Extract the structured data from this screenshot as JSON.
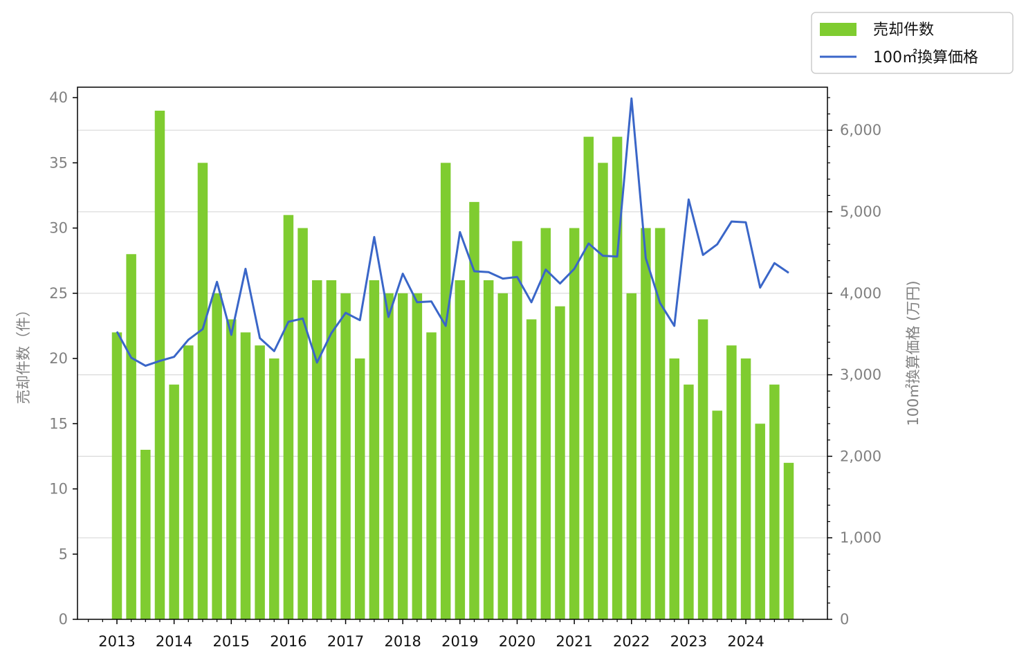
{
  "chart_data": {
    "type": "bar",
    "x": [
      "2013-01",
      "2013-04",
      "2013-07",
      "2013-10",
      "2014-01",
      "2014-04",
      "2014-07",
      "2014-10",
      "2015-01",
      "2015-04",
      "2015-07",
      "2015-10",
      "2016-01",
      "2016-04",
      "2016-07",
      "2016-10",
      "2017-01",
      "2017-04",
      "2017-07",
      "2017-10",
      "2018-01",
      "2018-04",
      "2018-07",
      "2018-10",
      "2019-01",
      "2019-04",
      "2019-07",
      "2019-10",
      "2020-01",
      "2020-04",
      "2020-07",
      "2020-10",
      "2021-01",
      "2021-04",
      "2021-07",
      "2021-10",
      "2022-01",
      "2022-04",
      "2022-07",
      "2022-10",
      "2023-01",
      "2023-04",
      "2023-07",
      "2023-10",
      "2024-01",
      "2024-04",
      "2024-07",
      "2024-10"
    ],
    "xticks": [
      "2013",
      "2014",
      "2015",
      "2016",
      "2017",
      "2018",
      "2019",
      "2020",
      "2021",
      "2022",
      "2023",
      "2024"
    ],
    "series": [
      {
        "name": "売却件数",
        "type": "bar",
        "axis": "left",
        "color": "#7fcc30",
        "values": [
          22,
          28,
          13,
          39,
          18,
          21,
          35,
          25,
          23,
          22,
          21,
          20,
          31,
          30,
          26,
          26,
          25,
          20,
          26,
          25,
          25,
          25,
          22,
          35,
          26,
          32,
          26,
          25,
          29,
          23,
          30,
          24,
          30,
          37,
          35,
          37,
          25,
          30,
          30,
          20,
          18,
          23,
          16,
          21,
          20,
          15,
          18,
          12
        ]
      },
      {
        "name": "100㎡換算価格",
        "type": "line",
        "axis": "right",
        "color": "#3a66c8",
        "values": [
          3530,
          3210,
          3110,
          3170,
          3220,
          3430,
          3560,
          4140,
          3490,
          4300,
          3450,
          3290,
          3650,
          3690,
          3150,
          3510,
          3760,
          3670,
          4690,
          3710,
          4240,
          3890,
          3900,
          3600,
          4750,
          4270,
          4260,
          4180,
          4200,
          3890,
          4290,
          4120,
          4300,
          4610,
          4460,
          4450,
          6390,
          4430,
          3880,
          3600,
          5150,
          4470,
          4600,
          4880,
          4870,
          4070,
          4370,
          4250
        ]
      }
    ],
    "ylabel": "売却件数（件）",
    "ylabel2": "100㎡換算価格 (万円)",
    "ylim": [
      0,
      40.8
    ],
    "ylim2": [
      0,
      6528
    ],
    "yticks": [
      "0",
      "5",
      "10",
      "15",
      "20",
      "25",
      "30",
      "35",
      "40"
    ],
    "yticks2": [
      "0",
      "1,000",
      "2,000",
      "3,000",
      "4,000",
      "5,000",
      "6,000"
    ],
    "grid": "horizontal, right axis major ticks",
    "legend_position": "top-right, outside plot"
  }
}
